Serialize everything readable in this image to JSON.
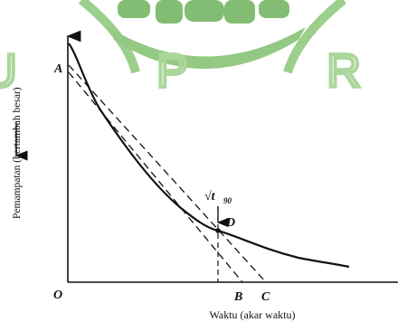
{
  "watermark": {
    "text": "U P R",
    "color": "#8fc97a",
    "logo_color": "#5aa845"
  },
  "diagram": {
    "y_axis_label": "Pemampatan (bertambah besar)",
    "x_axis_label": "Waktu (akar waktu)",
    "origin_label": "O",
    "point_a_label": "A",
    "point_b_label": "B",
    "point_c_label": "C",
    "point_d_label": "D",
    "sqrt_t90_main": "√t",
    "sqrt_t90_sub": "90",
    "stroke_color": "#111111"
  }
}
